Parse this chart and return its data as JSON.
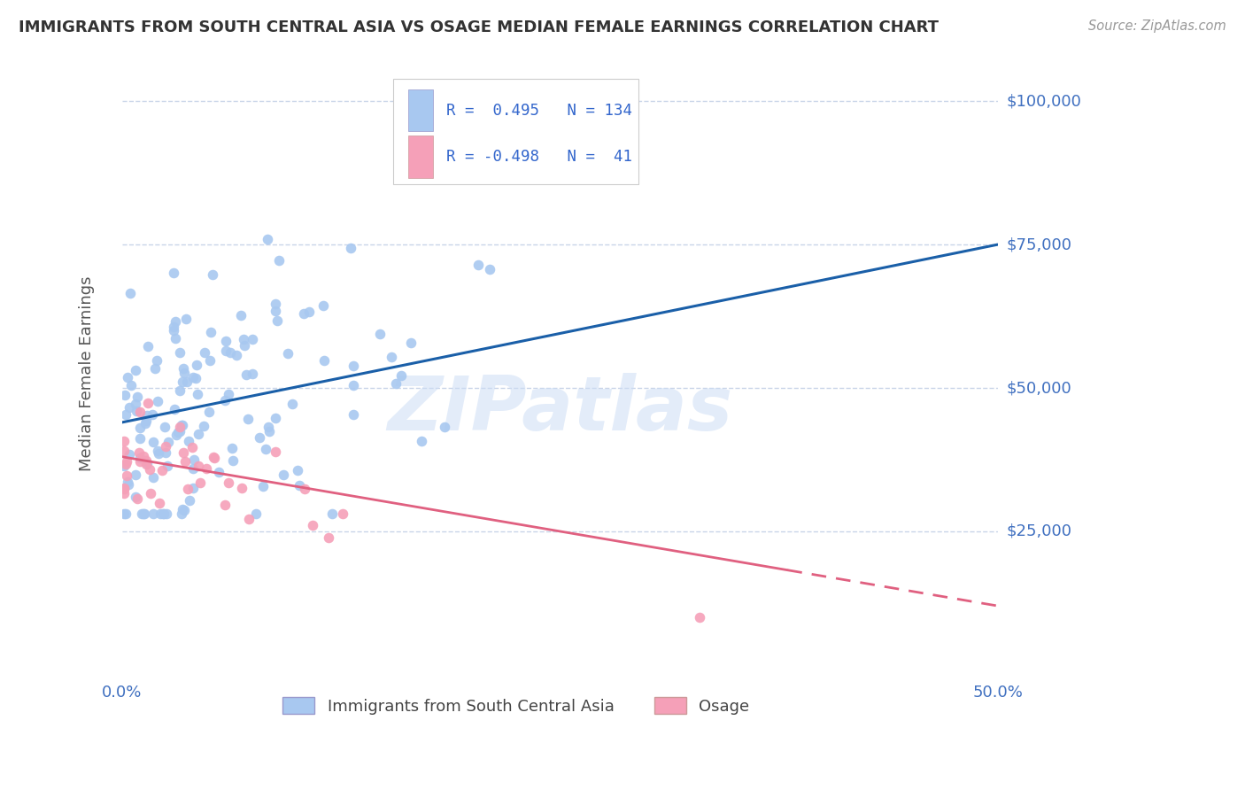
{
  "title": "IMMIGRANTS FROM SOUTH CENTRAL ASIA VS OSAGE MEDIAN FEMALE EARNINGS CORRELATION CHART",
  "source": "Source: ZipAtlas.com",
  "xlabel_blue": "Immigrants from South Central Asia",
  "xlabel_pink": "Osage",
  "ylabel": "Median Female Earnings",
  "xmin": 0.0,
  "xmax": 0.5,
  "ymin": 0,
  "ymax": 105000,
  "yticks": [
    25000,
    50000,
    75000,
    100000
  ],
  "ytick_labels": [
    "$25,000",
    "$50,000",
    "$75,000",
    "$100,000"
  ],
  "blue_R": 0.495,
  "blue_N": 134,
  "pink_R": -0.498,
  "pink_N": 41,
  "blue_color": "#a8c8f0",
  "pink_color": "#f5a0b8",
  "blue_line_color": "#1a5fa8",
  "pink_line_color": "#e06080",
  "pink_line_solid_end": 0.38,
  "legend_R_color": "#3366cc",
  "watermark": "ZIPatlas",
  "background_color": "#ffffff",
  "grid_color": "#c8d4e8",
  "title_color": "#333333",
  "ylabel_color": "#555555",
  "axis_label_color": "#4070c0",
  "blue_line_intercept": 44000,
  "blue_line_slope": 62000,
  "pink_line_intercept": 38000,
  "pink_line_slope": -52000
}
